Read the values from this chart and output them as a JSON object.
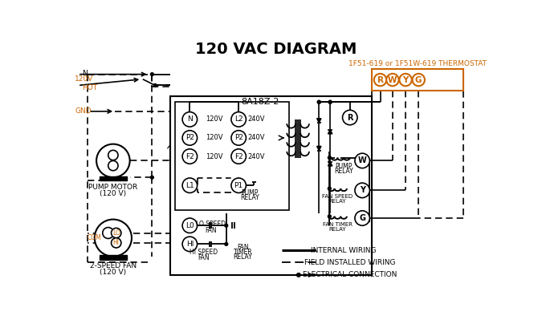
{
  "title": "120 VAC DIAGRAM",
  "bg_color": "#ffffff",
  "black": "#000000",
  "orange": "#cc6600",
  "thermostat_label": "1F51-619 or 1F51W-619 THERMOSTAT",
  "box_label": "8A18Z-2"
}
